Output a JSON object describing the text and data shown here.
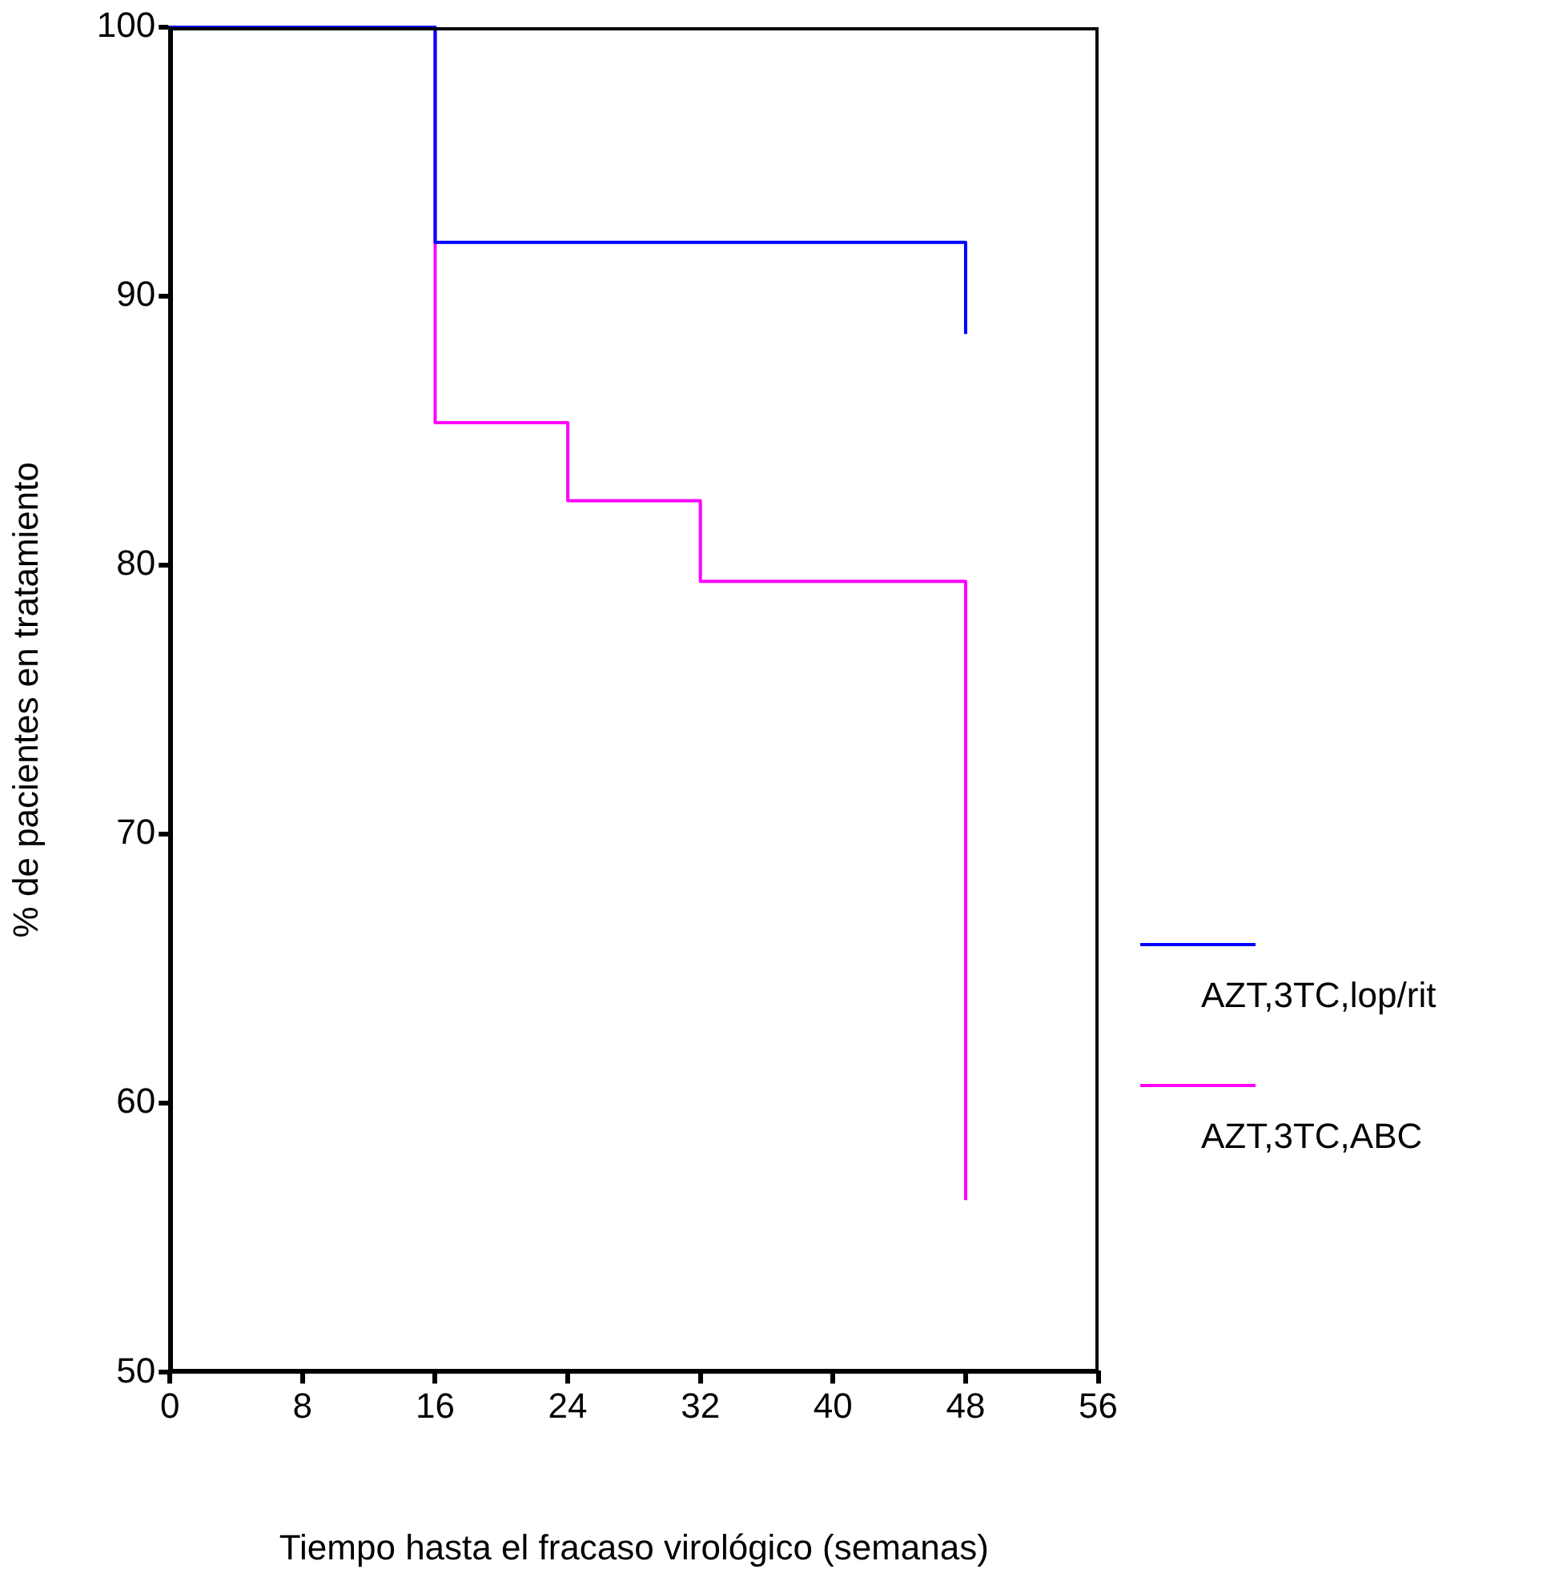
{
  "chart_data": {
    "type": "step",
    "xlabel": "Tiempo hasta el fracaso virológico (semanas)",
    "ylabel": "% de pacientes en tratamiento",
    "xlim": [
      0,
      56
    ],
    "xticks": [
      0,
      8,
      16,
      24,
      32,
      40,
      48,
      56
    ],
    "ylim": [
      50,
      100
    ],
    "yticks": [
      50,
      60,
      70,
      80,
      90,
      100
    ],
    "grid": false,
    "legend": "right",
    "series": [
      {
        "name": "AZT,3TC,lop/rit",
        "color": "#0000ff",
        "x": [
          0,
          16,
          48,
          48
        ],
        "values": [
          100,
          92,
          92,
          88.6
        ]
      },
      {
        "name": "AZT,3TC,ABC",
        "color": "#ff00ff",
        "x": [
          0,
          16,
          24,
          32,
          48,
          48
        ],
        "values": [
          100,
          85.3,
          82.4,
          79.4,
          79.4,
          56.4
        ]
      }
    ]
  }
}
